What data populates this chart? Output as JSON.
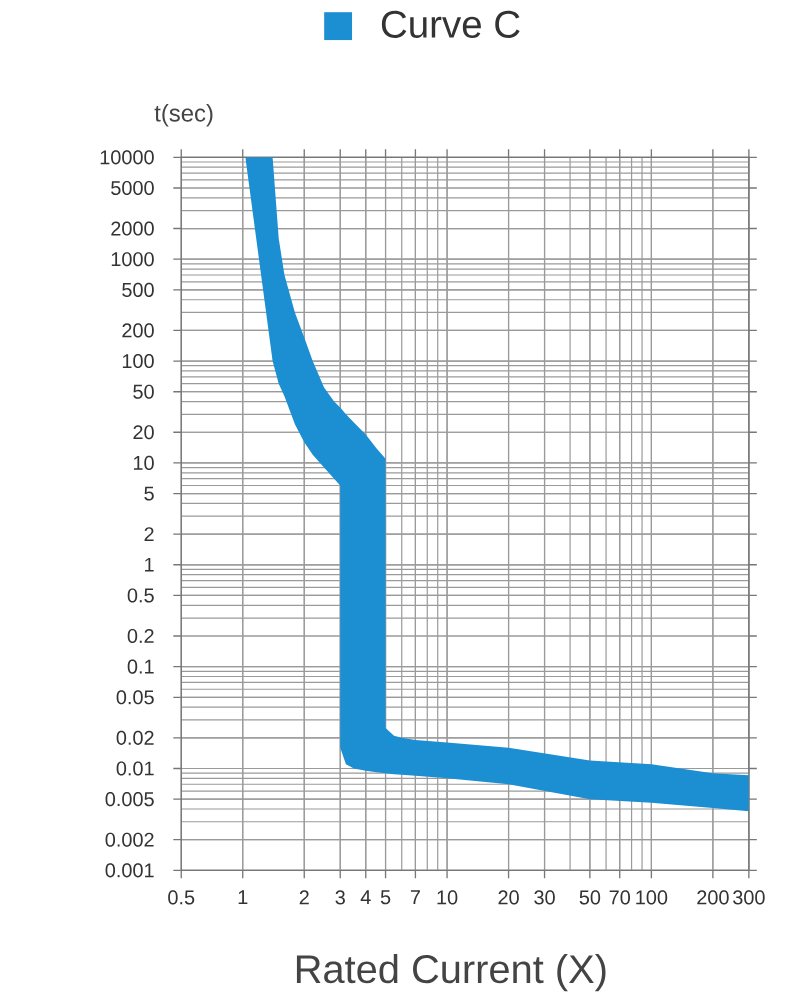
{
  "chart_data": {
    "type": "area",
    "log": "xy",
    "legend": "top",
    "grid": true,
    "xlabel": "Rated Current (X)",
    "ylabel": "t(sec)",
    "xlim": [
      0.5,
      300
    ],
    "ylim": [
      0.001,
      10000
    ],
    "xticks": [
      0.5,
      1,
      2,
      3,
      4,
      5,
      7,
      10,
      20,
      30,
      50,
      70,
      100,
      200,
      300
    ],
    "yticks": [
      0.001,
      0.002,
      0.005,
      0.01,
      0.02,
      0.05,
      0.1,
      0.2,
      0.5,
      1,
      2,
      5,
      10,
      20,
      50,
      100,
      200,
      500,
      1000,
      2000,
      5000,
      10000
    ],
    "series": [
      {
        "name": "Curve C",
        "color": "#1b8fd2",
        "x": [
          1.03,
          1.4,
          1.5,
          1.6,
          1.8,
          2,
          2.2,
          2.5,
          2.8,
          3,
          3,
          3.2,
          3.5,
          4,
          4.5,
          5,
          5,
          5.5,
          6,
          7,
          10,
          20,
          50,
          100,
          200,
          300
        ],
        "values": [
          null,
          null,
          null,
          null,
          null,
          null,
          null,
          null,
          null,
          null,
          null,
          null,
          null,
          null,
          null,
          null,
          null,
          null,
          null,
          null,
          null,
          null,
          null,
          null,
          null,
          null
        ],
        "lower": [
          10000,
          100,
          60,
          45,
          24,
          16,
          12,
          9,
          7,
          6,
          0.016,
          0.011,
          0.01,
          0.0095,
          0.0092,
          0.009,
          0.009,
          0.0088,
          0.0087,
          0.0085,
          0.008,
          0.007,
          0.005,
          0.0046,
          0.0041,
          0.0038
        ],
        "upper": [
          10000,
          10000,
          1600,
          700,
          300,
          170,
          100,
          55,
          40,
          35,
          35,
          30,
          25,
          19,
          14,
          11,
          0.025,
          0.021,
          0.02,
          0.019,
          0.018,
          0.016,
          0.012,
          0.011,
          0.009,
          0.0086
        ]
      }
    ]
  }
}
